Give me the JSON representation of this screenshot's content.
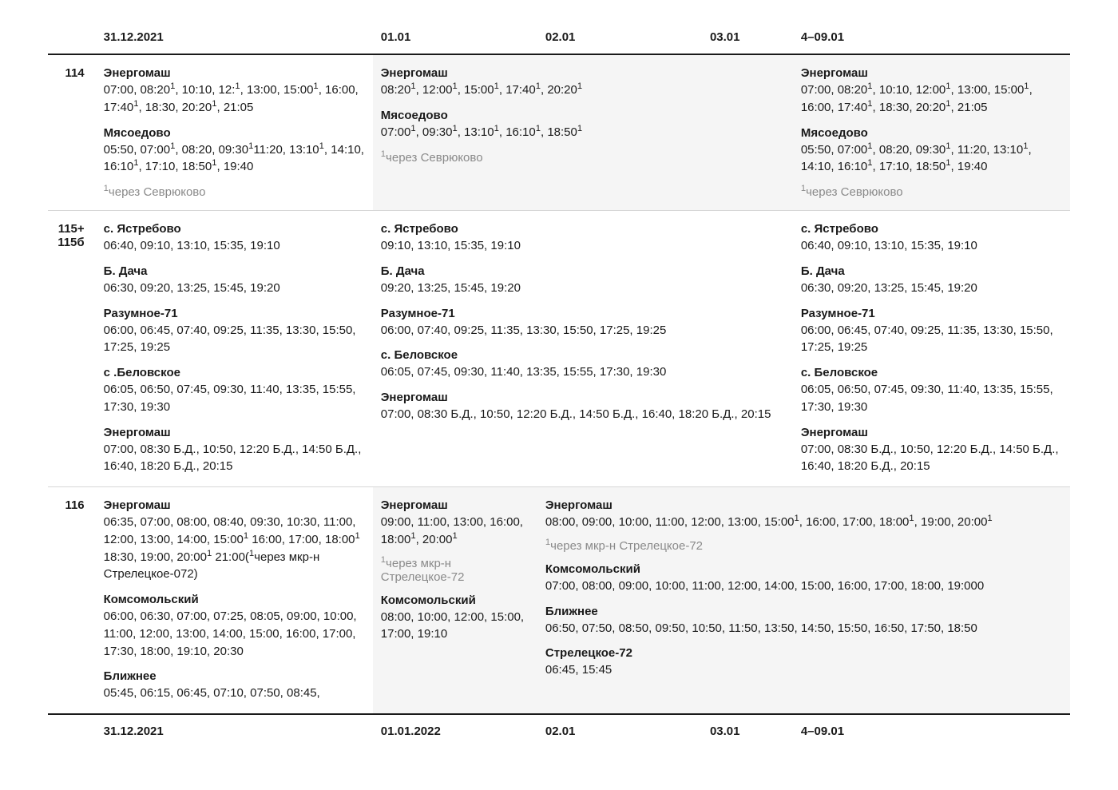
{
  "header": {
    "c1": "31.12.2021",
    "c2": "01.01",
    "c3": "02.01",
    "c4": "03.01",
    "c5": "4–09.01"
  },
  "footer": {
    "c1": "31.12.2021",
    "c2": "01.01.2022",
    "c3": "02.01",
    "c4": "03.01",
    "c5": "4–09.01"
  },
  "rows": [
    {
      "route": "114",
      "cells": [
        {
          "span": 1,
          "shade": false,
          "blocks": [
            {
              "loc": "Энергомаш",
              "times": "07:00, 08:20¹, 10:10, 12:¹, 13:00, 15:00¹, 16:00, 17:40¹, 18:30, 20:20¹, 21:05"
            },
            {
              "loc": "Мясоедово",
              "times": "05:50, 07:00¹, 08:20, 09:30¹11:20, 13:10¹, 14:10, 16:10¹, 17:10, 18:50¹, 19:40"
            }
          ],
          "note": "¹через Севрюково"
        },
        {
          "span": 3,
          "shade": true,
          "blocks": [
            {
              "loc": "Энергомаш",
              "times": "08:20¹, 12:00¹, 15:00¹, 17:40¹, 20:20¹"
            },
            {
              "loc": "Мясоедово",
              "times": "07:00¹, 09:30¹, 13:10¹, 16:10¹, 18:50¹"
            }
          ],
          "note": "¹через Севрюково"
        },
        {
          "span": 1,
          "shade": true,
          "blocks": [
            {
              "loc": "Энергомаш",
              "times": "07:00, 08:20¹, 10:10, 12:00¹, 13:00, 15:00¹, 16:00, 17:40¹, 18:30, 20:20¹, 21:05"
            },
            {
              "loc": "Мясоедово",
              "times": "05:50, 07:00¹, 08:20, 09:30¹, 11:20, 13:10¹, 14:10, 16:10¹, 17:10, 18:50¹, 19:40"
            }
          ],
          "note": "¹через Севрюково"
        }
      ]
    },
    {
      "route": "115+\n115б",
      "cells": [
        {
          "span": 1,
          "shade": false,
          "blocks": [
            {
              "loc": "с. Ястребово",
              "times": "06:40, 09:10, 13:10, 15:35, 19:10"
            },
            {
              "loc": "Б. Дача",
              "times": "06:30, 09:20, 13:25, 15:45, 19:20"
            },
            {
              "loc": "Разумное-71",
              "times": "06:00, 06:45, 07:40, 09:25, 11:35, 13:30, 15:50, 17:25, 19:25"
            },
            {
              "loc": "с .Беловское",
              "times": "06:05, 06:50, 07:45, 09:30, 11:40, 13:35, 15:55, 17:30, 19:30"
            },
            {
              "loc": "Энергомаш",
              "times": "07:00, 08:30 Б.Д., 10:50, 12:20 Б.Д., 14:50 Б.Д., 16:40, 18:20 Б.Д., 20:15"
            }
          ]
        },
        {
          "span": 3,
          "shade": false,
          "blocks": [
            {
              "loc": "с. Ястребово",
              "times": "09:10, 13:10, 15:35, 19:10"
            },
            {
              "loc": "Б. Дача",
              "times": "09:20, 13:25, 15:45, 19:20"
            },
            {
              "loc": "Разумное-71",
              "times": "06:00, 07:40, 09:25, 11:35, 13:30, 15:50, 17:25, 19:25"
            },
            {
              "loc": "с. Беловское",
              "times": "06:05, 07:45, 09:30, 11:40, 13:35, 15:55, 17:30, 19:30"
            },
            {
              "loc": "Энергомаш",
              "times": "07:00, 08:30 Б.Д., 10:50, 12:20 Б.Д., 14:50 Б.Д., 16:40, 18:20 Б.Д., 20:15"
            }
          ]
        },
        {
          "span": 1,
          "shade": false,
          "blocks": [
            {
              "loc": "с. Ястребово",
              "times": "06:40, 09:10, 13:10, 15:35, 19:10"
            },
            {
              "loc": "Б. Дача",
              "times": "06:30, 09:20, 13:25, 15:45, 19:20"
            },
            {
              "loc": "Разумное-71",
              "times": "06:00, 06:45, 07:40, 09:25, 11:35, 13:30, 15:50, 17:25, 19:25"
            },
            {
              "loc": "с. Беловское",
              "times": "06:05, 06:50, 07:45, 09:30, 11:40, 13:35, 15:55, 17:30, 19:30"
            },
            {
              "loc": "Энергомаш",
              "times": "07:00, 08:30 Б.Д., 10:50, 12:20 Б.Д., 14:50 Б.Д., 16:40, 18:20 Б.Д., 20:15"
            }
          ]
        }
      ]
    },
    {
      "route": "116",
      "cells": [
        {
          "span": 1,
          "shade": false,
          "blocks": [
            {
              "loc": "Энергомаш",
              "times": "06:35, 07:00, 08:00, 08:40, 09:30, 10:30, 11:00, 12:00, 13:00, 14:00, 15:00¹ 16:00, 17:00, 18:00¹ 18:30, 19:00, 20:00¹ 21:00(¹через мкр-н Стрелецкое-072)"
            },
            {
              "loc": "Комсомольский",
              "times": "06:00, 06:30, 07:00, 07:25, 08:05, 09:00, 10:00, 11:00, 12:00, 13:00, 14:00, 15:00, 16:00, 17:00, 17:30, 18:00, 19:10, 20:30"
            },
            {
              "loc": "Ближнее",
              "times": "05:45, 06:15, 06:45, 07:10, 07:50, 08:45,"
            }
          ]
        },
        {
          "span": 1,
          "shade": true,
          "blocks": [
            {
              "loc": "Энергомаш",
              "times": "09:00, 11:00, 13:00, 16:00, 18:00¹, 20:00¹",
              "inlineNote": "¹через мкр-н Стрелецкое-72"
            },
            {
              "loc": "Комсомольский",
              "times": "08:00, 10:00, 12:00, 15:00, 17:00, 19:10"
            }
          ]
        },
        {
          "span": 3,
          "shade": true,
          "blocks": [
            {
              "loc": "Энергомаш",
              "times": "08:00, 09:00, 10:00, 11:00, 12:00, 13:00, 15:00¹, 16:00, 17:00, 18:00¹, 19:00, 20:00¹",
              "inlineNote": "¹через мкр-н Стрелецкое-72"
            },
            {
              "loc": "Комсомольский",
              "times": "07:00, 08:00, 09:00, 10:00, 11:00, 12:00, 14:00, 15:00, 16:00, 17:00, 18:00, 19:000"
            },
            {
              "loc": "Ближнее",
              "times": "06:50, 07:50, 08:50, 09:50, 10:50, 11:50, 13:50, 14:50, 15:50, 16:50, 17:50, 18:50"
            },
            {
              "loc": "Стрелецкое-72",
              "times": "06:45, 15:45"
            }
          ]
        }
      ]
    }
  ]
}
